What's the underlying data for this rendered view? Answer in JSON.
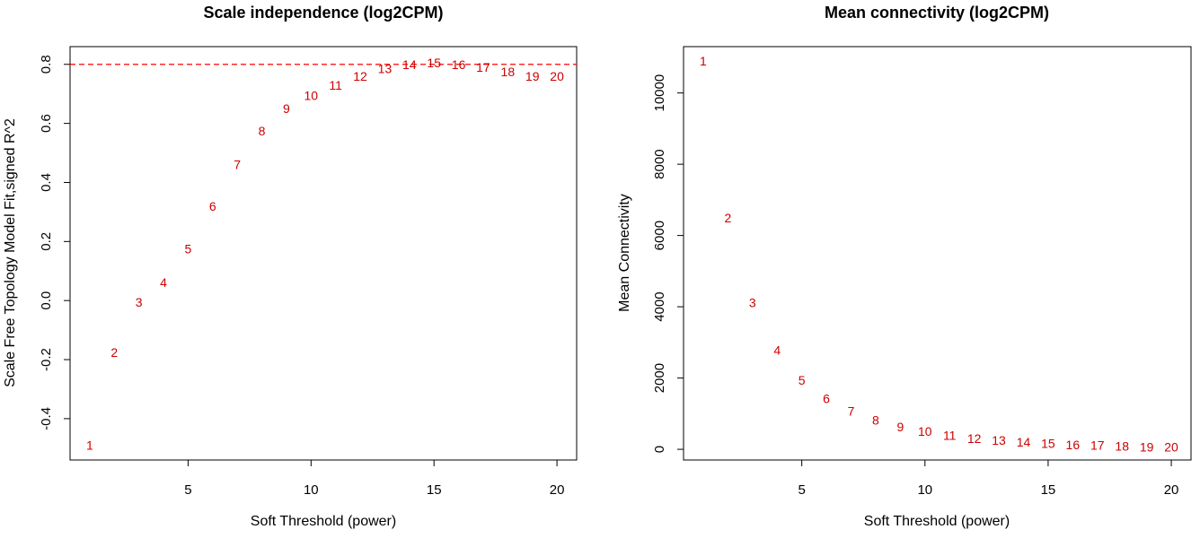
{
  "chart_data": [
    {
      "type": "scatter",
      "title": "Scale independence (log2CPM)",
      "xlabel": "Soft Threshold (power)",
      "ylabel": "Scale Free Topology Model Fit,signed R^2",
      "xlim": [
        0.2,
        20.8
      ],
      "ylim": [
        -0.54,
        0.86
      ],
      "xticks": [
        "5",
        "10",
        "15",
        "20"
      ],
      "yticks": [
        "-0.4",
        "-0.2",
        "0.0",
        "0.2",
        "0.4",
        "0.6",
        "0.8"
      ],
      "reference_line": 0.8,
      "point_labels": [
        "1",
        "2",
        "3",
        "4",
        "5",
        "6",
        "7",
        "8",
        "9",
        "10",
        "11",
        "12",
        "13",
        "14",
        "15",
        "16",
        "17",
        "18",
        "19",
        "20"
      ],
      "x": [
        1,
        2,
        3,
        4,
        5,
        6,
        7,
        8,
        9,
        10,
        11,
        12,
        13,
        14,
        15,
        16,
        17,
        18,
        19,
        20
      ],
      "y": [
        -0.49,
        -0.175,
        -0.005,
        0.062,
        0.175,
        0.32,
        0.46,
        0.575,
        0.65,
        0.695,
        0.73,
        0.76,
        0.785,
        0.8,
        0.805,
        0.8,
        0.79,
        0.775,
        0.76,
        0.76
      ],
      "colors": {
        "points": "#cc0000",
        "reference_line": "#ff0000"
      },
      "grid": false
    },
    {
      "type": "scatter",
      "title": "Mean connectivity (log2CPM)",
      "xlabel": "Soft Threshold (power)",
      "ylabel": "Mean Connectivity",
      "xlim": [
        0.2,
        20.8
      ],
      "ylim": [
        -300,
        11300
      ],
      "xticks": [
        "5",
        "10",
        "15",
        "20"
      ],
      "yticks": [
        "0",
        "2000",
        "4000",
        "6000",
        "8000",
        "10000"
      ],
      "point_labels": [
        "1",
        "2",
        "3",
        "4",
        "5",
        "6",
        "7",
        "8",
        "9",
        "10",
        "11",
        "12",
        "13",
        "14",
        "15",
        "16",
        "17",
        "18",
        "19",
        "20"
      ],
      "x": [
        1,
        2,
        3,
        4,
        5,
        6,
        7,
        8,
        9,
        10,
        11,
        12,
        13,
        14,
        15,
        16,
        17,
        18,
        19,
        20
      ],
      "y": [
        10900,
        6500,
        4120,
        2780,
        1940,
        1420,
        1070,
        820,
        630,
        500,
        390,
        310,
        250,
        200,
        160,
        130,
        110,
        90,
        70,
        60
      ],
      "colors": {
        "points": "#cc0000"
      },
      "grid": false
    }
  ]
}
